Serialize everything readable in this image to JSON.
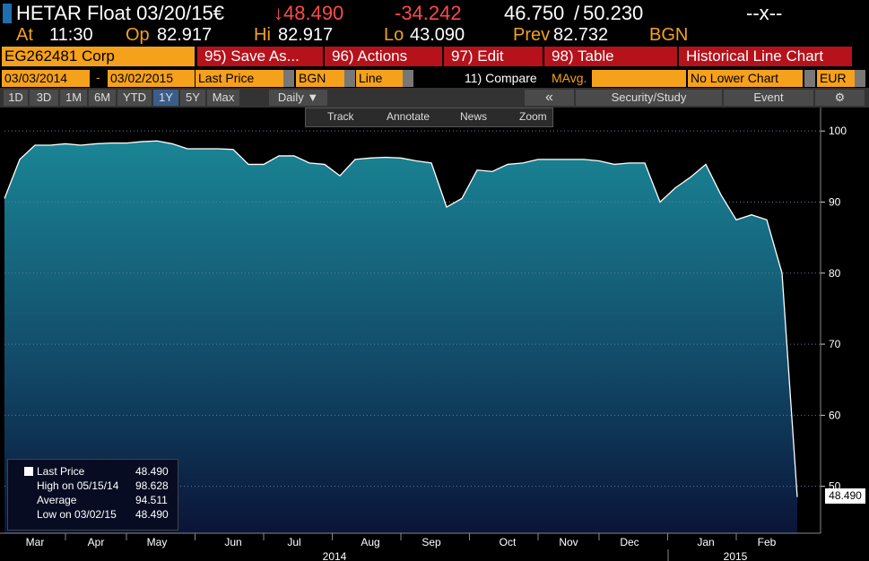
{
  "header": {
    "ticker": "HETAR Float 03/20/15€",
    "last": "↓48.490",
    "change": "-34.242",
    "bid": "46.750",
    "slash": "/",
    "ask": "50.230",
    "menu": "--x--"
  },
  "quote": [
    {
      "label": "At",
      "value": "11:30"
    },
    {
      "label": "Op",
      "value": "82.917"
    },
    {
      "label": "Hi",
      "value": "82.917"
    },
    {
      "label": "Lo",
      "value": "43.090"
    },
    {
      "label": "Prev",
      "value": "82.732"
    }
  ],
  "source": "BGN",
  "toolbar": {
    "security": "EG262481 Corp",
    "save": "95) Save As...",
    "actions": "96) Actions",
    "edit": "97) Edit",
    "table": "98) Table",
    "view": "Historical Line Chart"
  },
  "settings": {
    "start": "03/03/2014",
    "dash": "-",
    "end": "03/02/2015",
    "field": "Last Price",
    "source": "BGN",
    "style": "Line",
    "compare": "11) Compare",
    "mavg": "MAvg.",
    "lower": "No Lower Chart",
    "currency": "EUR"
  },
  "periods": [
    "1D",
    "3D",
    "1M",
    "6M",
    "YTD",
    "1Y",
    "5Y",
    "Max"
  ],
  "interval": "Daily ▼",
  "nav": "«",
  "study": "Security/Study",
  "event": "Event",
  "tools": [
    "Track",
    "Annotate",
    "News",
    "Zoom"
  ],
  "legend": [
    {
      "value": "48.490"
    },
    {
      "label": "High on 05/15/14",
      "value": "98.628"
    },
    {
      "label": "Average",
      "value": "94.511"
    },
    {
      "label": "Low on 03/02/15",
      "value": "48.490"
    }
  ],
  "chart_data": {
    "type": "area",
    "categories": [
      null,
      null,
      "Mar",
      null,
      null,
      null,
      "Apr",
      null,
      null,
      null,
      "May",
      null,
      null,
      null,
      null,
      "Jun",
      null,
      null,
      null,
      "Jul",
      null,
      null,
      null,
      null,
      "Aug",
      null,
      null,
      null,
      "Sep",
      null,
      null,
      null,
      null,
      "Oct",
      null,
      null,
      null,
      "Nov",
      null,
      null,
      null,
      "Dec",
      null,
      null,
      null,
      null,
      "Jan",
      null,
      null,
      null,
      "Feb",
      null,
      null
    ],
    "series": [
      {
        "name": "Last Price",
        "color": "#ffffff",
        "values": [
          90.5,
          96,
          98,
          98,
          98.2,
          98,
          98.2,
          98.3,
          98.3,
          98.5,
          98.6,
          98.2,
          97.5,
          97.5,
          97.5,
          97.4,
          95.3,
          95.3,
          96.5,
          96.5,
          95.5,
          95.3,
          93.7,
          96,
          96.2,
          96.3,
          96.2,
          95.8,
          95.5,
          89.3,
          90.5,
          94.5,
          94.3,
          95.3,
          95.5,
          96,
          96,
          96,
          96,
          95.8,
          95.3,
          95.5,
          95.5,
          90,
          92,
          93.5,
          95.3,
          91,
          87.5,
          88.2,
          87.5,
          80,
          48.49
        ]
      }
    ],
    "years": [
      "2014",
      "2015"
    ],
    "ylim": [
      43.4,
      103.3
    ],
    "yticks": [
      50,
      60,
      70,
      80,
      90,
      100
    ],
    "grid": true
  }
}
